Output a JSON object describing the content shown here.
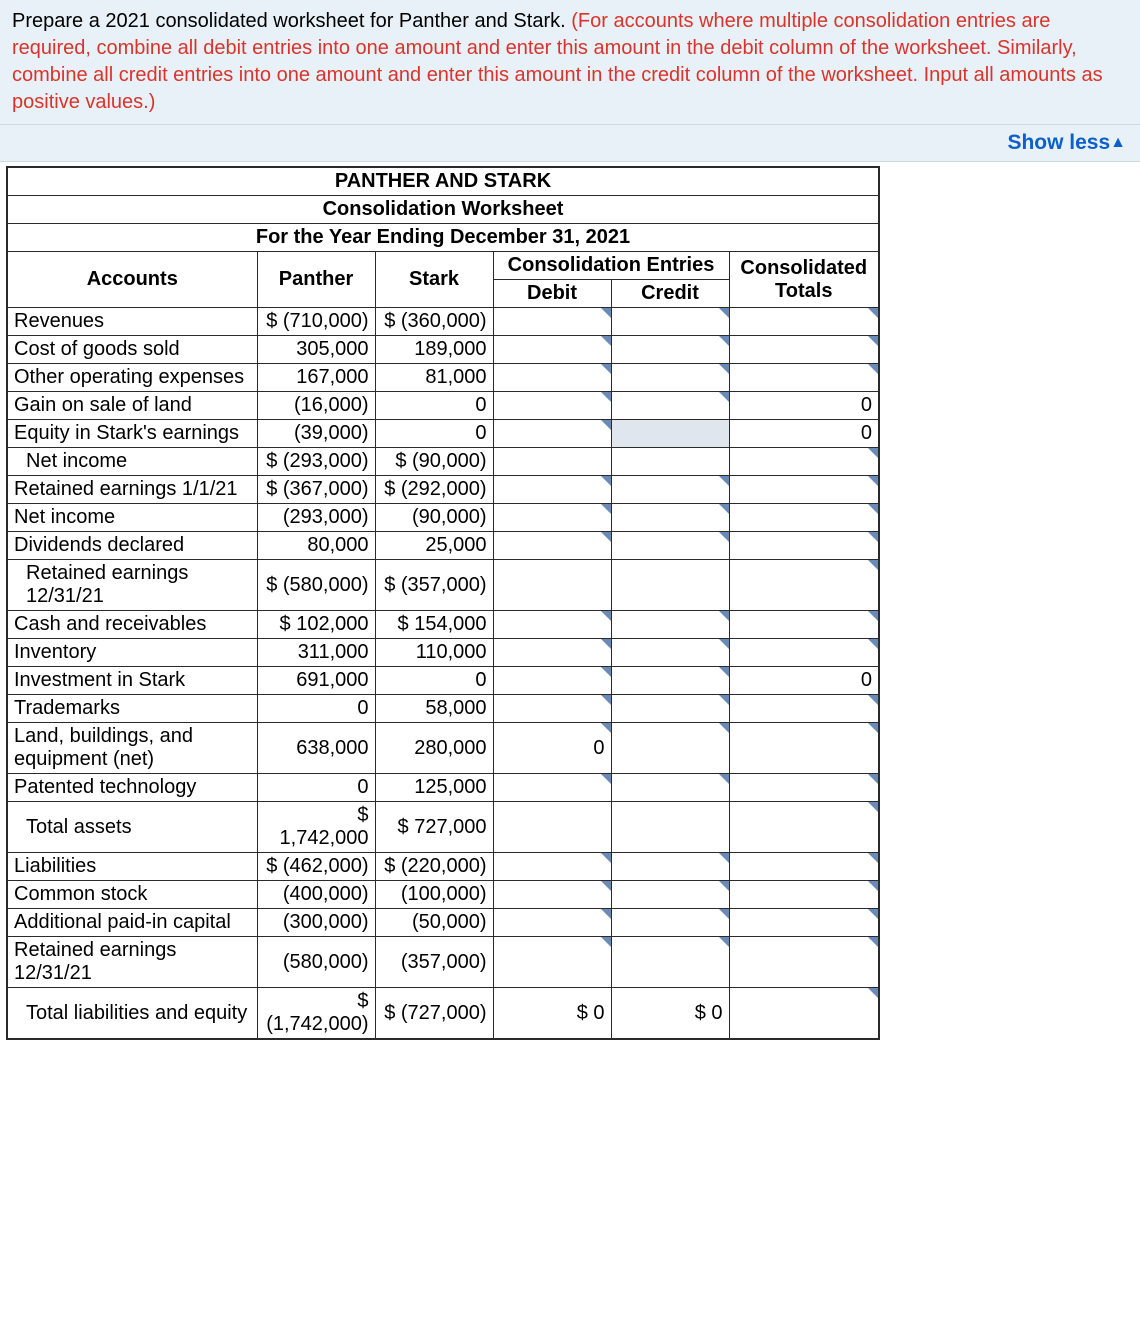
{
  "instruction": {
    "black": "Prepare a 2021 consolidated worksheet for Panther and Stark. ",
    "red": "(For accounts where multiple consolidation entries are required, combine all debit entries into one amount and enter this amount in the debit column of the worksheet. Similarly, combine all credit entries into one amount and enter this amount in the credit column of the worksheet. Input all amounts as positive values.)"
  },
  "show_less": "Show less",
  "headers": {
    "company": "PANTHER AND STARK",
    "title": "Consolidation Worksheet",
    "period": "For the Year Ending December 31, 2021",
    "consolidation_entries": "Consolidation Entries",
    "accounts": "Accounts",
    "panther": "Panther",
    "stark": "Stark",
    "debit": "Debit",
    "credit": "Credit",
    "totals": "Consolidated Totals"
  },
  "rows": [
    {
      "label": "Revenues",
      "panther": "$ (710,000)",
      "stark": "$ (360,000)",
      "debit_input": true,
      "credit_input": true,
      "total_input": true
    },
    {
      "label": "Cost of goods sold",
      "panther": "305,000",
      "stark": "189,000",
      "debit_input": true,
      "credit_input": true,
      "total_input": true
    },
    {
      "label": "Other operating expenses",
      "panther": "167,000",
      "stark": "81,000",
      "debit_input": true,
      "credit_input": true,
      "total_input": true
    },
    {
      "label": "Gain on sale of land",
      "panther": "(16,000)",
      "stark": "0",
      "debit_input": true,
      "credit_input": true,
      "total_value": "0"
    },
    {
      "label": "Equity in Stark's earnings",
      "panther": "(39,000)",
      "stark": "0",
      "debit_input": true,
      "credit_shade": true,
      "total_value": "0"
    },
    {
      "label": "Net income",
      "indent": true,
      "panther": "$ (293,000)",
      "stark": "$ (90,000)",
      "debit_blank": true,
      "credit_blank": true,
      "total_input": true
    },
    {
      "label": "Retained earnings 1/1/21",
      "panther": "$ (367,000)",
      "stark": "$ (292,000)",
      "debit_input": true,
      "credit_input": true,
      "total_input": true
    },
    {
      "label": "Net income",
      "panther": "(293,000)",
      "stark": "(90,000)",
      "debit_input": true,
      "credit_input": true,
      "total_input": true
    },
    {
      "label": "Dividends declared",
      "panther": "80,000",
      "stark": "25,000",
      "debit_input": true,
      "credit_input": true,
      "total_input": true
    },
    {
      "label": "Retained earnings 12/31/21",
      "indent": true,
      "panther": "$ (580,000)",
      "stark": "$ (357,000)",
      "debit_blank": true,
      "credit_blank": true,
      "total_input": true
    },
    {
      "label": "Cash and receivables",
      "panther": "$ 102,000",
      "stark": "$ 154,000",
      "debit_input": true,
      "credit_input": true,
      "total_input": true
    },
    {
      "label": "Inventory",
      "panther": "311,000",
      "stark": "110,000",
      "debit_input": true,
      "credit_input": true,
      "total_input": true
    },
    {
      "label": "Investment in Stark",
      "panther": "691,000",
      "stark": "0",
      "debit_input": true,
      "credit_input": true,
      "total_value": "0"
    },
    {
      "label": "Trademarks",
      "panther": "0",
      "stark": "58,000",
      "debit_input": true,
      "credit_input": true,
      "total_input": true
    },
    {
      "label": "Land, buildings, and equipment (net)",
      "panther": "638,000",
      "stark": "280,000",
      "debit_input": true,
      "debit_value": "0",
      "credit_input": true,
      "total_input": true
    },
    {
      "label": "Patented technology",
      "panther": "0",
      "stark": "125,000",
      "debit_input": true,
      "credit_input": true,
      "total_input": true
    },
    {
      "label": "Total assets",
      "indent": true,
      "panther": "$ 1,742,000",
      "stark": "$ 727,000",
      "debit_blank": true,
      "credit_blank": true,
      "total_input": true
    },
    {
      "label": "Liabilities",
      "panther": "$ (462,000)",
      "stark": "$ (220,000)",
      "debit_input": true,
      "credit_input": true,
      "total_input": true
    },
    {
      "label": "Common stock",
      "panther": "(400,000)",
      "stark": "(100,000)",
      "debit_input": true,
      "credit_input": true,
      "total_input": true
    },
    {
      "label": "Additional paid-in capital",
      "panther": "(300,000)",
      "stark": "(50,000)",
      "debit_input": true,
      "credit_input": true,
      "total_input": true
    },
    {
      "label": "Retained earnings 12/31/21",
      "panther": "(580,000)",
      "stark": "(357,000)",
      "debit_input": true,
      "credit_input": true,
      "total_input": true
    },
    {
      "label": "Total liabilities and equity",
      "indent": true,
      "panther": "$ (1,742,000)",
      "stark": "$ (727,000)",
      "debit_value_plain": "$       0",
      "credit_value_plain": "$       0",
      "total_input": true
    }
  ],
  "style": {
    "instruction_bg": "#e8f1f8",
    "instruction_red": "#d9342b",
    "link_blue": "#0b60c9",
    "border": "#2a2a2a",
    "input_corner": "#6a8bb5",
    "shade": "#dfe6ee"
  }
}
